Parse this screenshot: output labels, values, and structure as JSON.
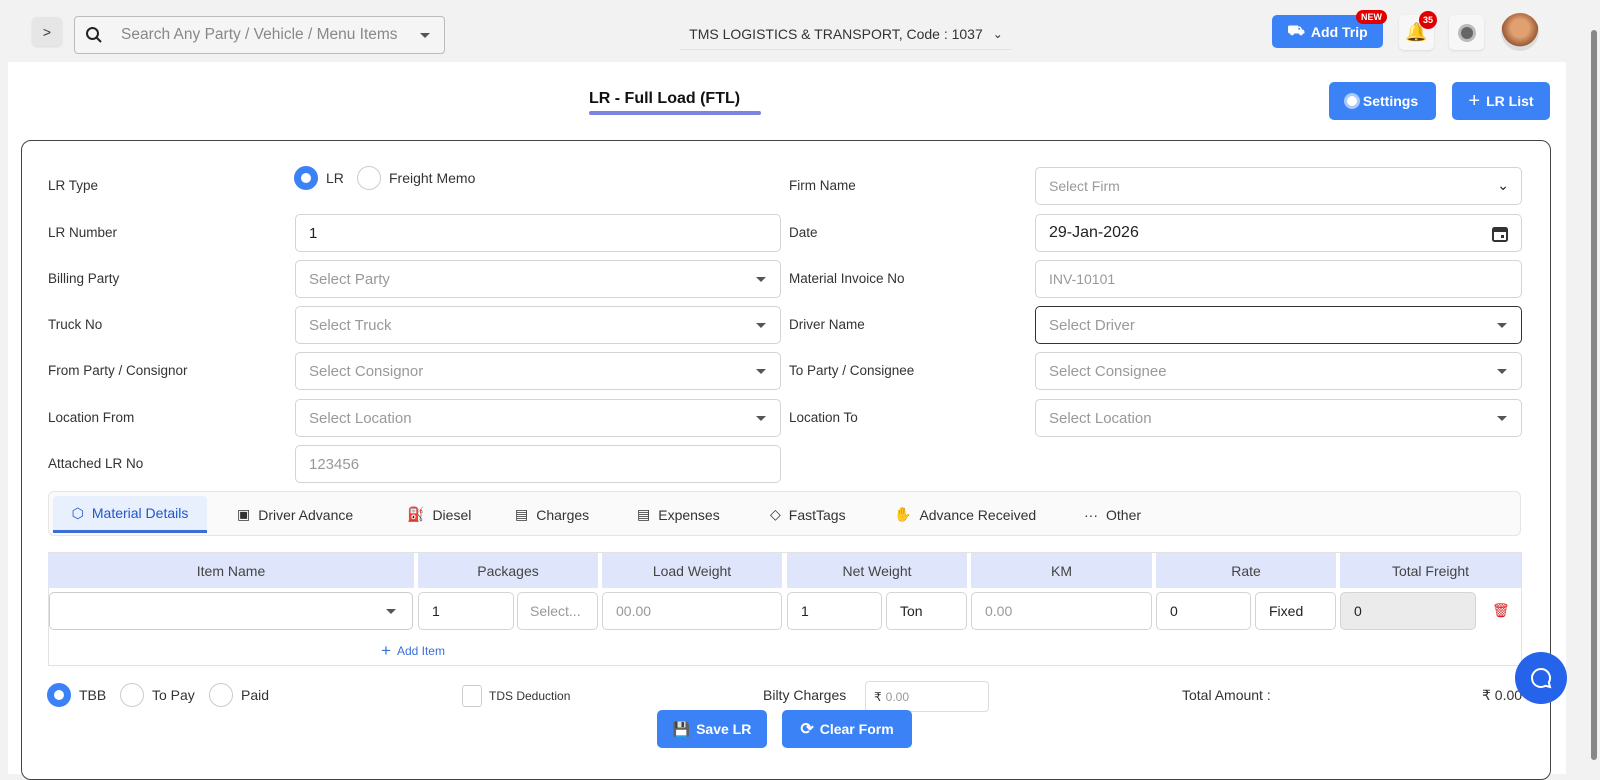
{
  "topbar": {
    "search_placeholder": "Search Any Party / Vehicle / Menu Items",
    "company": "TMS LOGISTICS & TRANSPORT, Code : 1037",
    "add_trip": "Add Trip",
    "new_badge": "NEW",
    "notif_count": "35"
  },
  "page": {
    "title": "LR - Full Load (FTL)",
    "settings": "Settings",
    "lr_list": "LR List"
  },
  "form": {
    "lr_type_label": "LR Type",
    "lr_type_options": [
      "LR",
      "Freight Memo"
    ],
    "lr_type_selected": "LR",
    "lr_number_label": "LR Number",
    "lr_number": "1",
    "billing_party_label": "Billing Party",
    "billing_party_ph": "Select Party",
    "truck_label": "Truck No",
    "truck_ph": "Select Truck",
    "consignor_label": "From Party / Consignor",
    "consignor_ph": "Select Consignor",
    "loc_from_label": "Location From",
    "loc_from_ph": "Select Location",
    "attached_label": "Attached LR No",
    "attached_ph": "123456",
    "firm_label": "Firm Name",
    "firm_ph": "Select Firm",
    "date_label": "Date",
    "date": "29-Jan-2026",
    "invoice_label": "Material Invoice No",
    "invoice_ph": "INV-10101",
    "driver_label": "Driver Name",
    "driver_ph": "Select Driver",
    "consignee_label": "To Party / Consignee",
    "consignee_ph": "Select Consignee",
    "loc_to_label": "Location To",
    "loc_to_ph": "Select Location"
  },
  "tabs": [
    {
      "label": "Material Details",
      "icon": "box-icon"
    },
    {
      "label": "Driver Advance",
      "icon": "cash-icon"
    },
    {
      "label": "Diesel",
      "icon": "fuel-icon"
    },
    {
      "label": "Charges",
      "icon": "receipt-icon"
    },
    {
      "label": "Expenses",
      "icon": "card-icon"
    },
    {
      "label": "FastTags",
      "icon": "tag-icon"
    },
    {
      "label": "Advance Received",
      "icon": "hand-icon"
    },
    {
      "label": "Other",
      "icon": "dots-icon"
    }
  ],
  "table": {
    "headers": [
      "Item Name",
      "Packages",
      "Load Weight",
      "Net Weight",
      "KM",
      "Rate",
      "Total Freight"
    ],
    "row": {
      "packages": "1",
      "package_unit_ph": "Select...",
      "load_weight_ph": "00.00",
      "net_weight": "1",
      "net_unit": "Ton",
      "km_ph": "0.00",
      "rate": "0",
      "rate_type": "Fixed",
      "total": "0"
    },
    "add_item": "Add Item"
  },
  "footer": {
    "pay_options": [
      "TBB",
      "To Pay",
      "Paid"
    ],
    "pay_selected": "TBB",
    "tds": "TDS Deduction",
    "bilty_label": "Bilty Charges",
    "bilty_ph": "0.00",
    "rupee": "₹",
    "total_label": "Total Amount :",
    "total_value": "₹ 0.00",
    "save": "Save LR",
    "clear": "Clear Form"
  },
  "colors": {
    "accent": "#3b82f6",
    "badge": "#e00000"
  }
}
